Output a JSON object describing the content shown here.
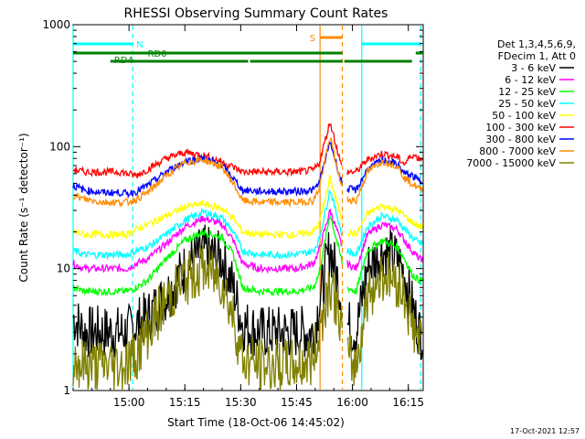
{
  "chart_data": {
    "type": "line",
    "title": "RHESSI Observing Summary Count Rates",
    "ylabel": "Count Rate (s⁻¹ detector⁻¹)",
    "xlabel": "Start Time (18-Oct-06 14:45:02)",
    "yscale": "log",
    "ylim": [
      1,
      1000
    ],
    "xlim_minutes": [
      0,
      94
    ],
    "x_ticks": [
      {
        "label": "15:00",
        "min": 15
      },
      {
        "label": "15:15",
        "min": 30
      },
      {
        "label": "15:30",
        "min": 45
      },
      {
        "label": "15:45",
        "min": 60
      },
      {
        "label": "16:00",
        "min": 75
      },
      {
        "label": "16:15",
        "min": 90
      }
    ],
    "y_ticks": [
      {
        "label": "1",
        "value": 1
      },
      {
        "label": "10",
        "value": 10
      },
      {
        "label": "100",
        "value": 100
      },
      {
        "label": "1000",
        "value": 1000
      }
    ],
    "legend_header": [
      "Det 1,3,4,5,6,9,",
      "FDecim 1, Att 0"
    ],
    "legend_placement": "right",
    "series": [
      {
        "name": "3 - 6 keV",
        "color": "#000000",
        "x": [
          0,
          3,
          8,
          13,
          14.5,
          17,
          20,
          25,
          30,
          35,
          40,
          43,
          45.5,
          50,
          56,
          60,
          64.5,
          66,
          69,
          72,
          73.5,
          76,
          79,
          83,
          87,
          89,
          91,
          93
        ],
        "y": [
          4,
          3,
          3,
          3,
          3,
          3.5,
          4,
          6,
          10,
          14,
          12,
          7,
          3.5,
          3,
          3,
          3,
          3,
          5,
          15,
          6,
          3.5,
          3,
          10,
          14,
          12,
          9,
          5,
          3
        ]
      },
      {
        "name": "6 - 12 keV",
        "color": "#ff00ff",
        "x": [
          0,
          3,
          8,
          13,
          14.5,
          17,
          20,
          25,
          30,
          35,
          40,
          43,
          45.5,
          50,
          56,
          60,
          64.5,
          66,
          69,
          72,
          73.5,
          76,
          79,
          83,
          87,
          89,
          91,
          93
        ],
        "y": [
          11,
          10,
          10,
          10,
          10,
          11,
          12,
          16,
          22,
          26,
          23,
          17,
          11,
          10,
          10,
          10,
          11,
          14,
          30,
          16,
          11,
          10,
          19,
          23,
          21,
          17,
          14,
          12
        ]
      },
      {
        "name": "12 - 25 keV",
        "color": "#00ff00",
        "x": [
          0,
          3,
          8,
          13,
          14.5,
          17,
          20,
          25,
          30,
          35,
          40,
          43,
          45.5,
          50,
          56,
          60,
          64.5,
          66,
          69,
          72,
          73.5,
          76,
          79,
          83,
          87,
          89,
          91,
          93
        ],
        "y": [
          7,
          6.5,
          6.5,
          6.5,
          6.5,
          7,
          8,
          12,
          17,
          20,
          18,
          13,
          7,
          6.5,
          6.5,
          6.5,
          7,
          9,
          28,
          12,
          7,
          6.5,
          14,
          17,
          15,
          12,
          9,
          8
        ]
      },
      {
        "name": "25 - 50 keV",
        "color": "#00ffff",
        "x": [
          0,
          3,
          8,
          13,
          14.5,
          17,
          20,
          25,
          30,
          35,
          40,
          43,
          45.5,
          50,
          56,
          60,
          64.5,
          66,
          69,
          72,
          73.5,
          76,
          79,
          83,
          87,
          89,
          91,
          93
        ],
        "y": [
          14,
          13,
          13,
          13,
          13,
          14,
          15,
          19,
          25,
          29,
          26,
          20,
          14,
          13,
          13,
          13,
          14,
          17,
          45,
          20,
          14,
          13,
          22,
          27,
          25,
          21,
          18,
          16
        ]
      },
      {
        "name": "50 - 100 keV",
        "color": "#ffff00",
        "x": [
          0,
          3,
          8,
          13,
          14.5,
          17,
          20,
          25,
          30,
          35,
          40,
          43,
          45.5,
          50,
          56,
          60,
          64.5,
          66,
          69,
          72,
          73.5,
          76,
          79,
          83,
          87,
          89,
          91,
          93
        ],
        "y": [
          20,
          19,
          19,
          19,
          19,
          21,
          23,
          27,
          32,
          34,
          31,
          26,
          20,
          19,
          19,
          19,
          20,
          23,
          55,
          26,
          20,
          19,
          28,
          33,
          30,
          27,
          24,
          22
        ]
      },
      {
        "name": "100 - 300 keV",
        "color": "#ff0000",
        "x": [
          0,
          3,
          8,
          13,
          14.5,
          17,
          20,
          25,
          30,
          35,
          40,
          43,
          45.5,
          50,
          56,
          60,
          64.5,
          66,
          69,
          72,
          73.5,
          76,
          79,
          83,
          87,
          89,
          91,
          93
        ],
        "y": [
          65,
          62,
          62,
          62,
          60,
          58,
          65,
          80,
          90,
          85,
          75,
          68,
          62,
          62,
          62,
          62,
          64,
          72,
          160,
          70,
          62,
          62,
          78,
          88,
          82,
          72,
          86,
          80
        ]
      },
      {
        "name": "300 - 800 keV",
        "color": "#0000ff",
        "x": [
          0,
          3,
          8,
          13,
          14.5,
          17,
          20,
          25,
          30,
          35,
          40,
          43,
          45.5,
          50,
          56,
          60,
          64.5,
          66,
          69,
          72,
          73.5,
          76,
          79,
          83,
          87,
          89,
          91,
          93
        ],
        "y": [
          48,
          44,
          42,
          42,
          41,
          43,
          48,
          62,
          76,
          80,
          70,
          55,
          44,
          43,
          43,
          43,
          44,
          50,
          110,
          52,
          45,
          44,
          65,
          78,
          72,
          60,
          58,
          52
        ]
      },
      {
        "name": "800 - 7000 keV",
        "color": "#ff8c00",
        "x": [
          0,
          3,
          8,
          13,
          14.5,
          17,
          20,
          25,
          30,
          35,
          40,
          43,
          45.5,
          50,
          56,
          60,
          64.5,
          66,
          69,
          72,
          73.5,
          76,
          79,
          83,
          87,
          89,
          91,
          93
        ],
        "y": [
          40,
          37,
          35,
          35,
          35,
          37,
          42,
          58,
          74,
          78,
          68,
          50,
          36,
          35,
          35,
          35,
          36,
          45,
          120,
          48,
          37,
          36,
          62,
          76,
          70,
          55,
          50,
          45
        ]
      },
      {
        "name": "7000 - 15000 keV",
        "color": "#808000",
        "x": [
          0,
          3,
          8,
          13,
          14.5,
          17,
          20,
          25,
          30,
          35,
          40,
          43,
          45.5,
          50,
          56,
          60,
          64.5,
          66,
          69,
          72,
          73.5,
          76,
          79,
          83,
          87,
          89,
          91,
          93
        ],
        "y": [
          1.8,
          1.6,
          1.6,
          1.6,
          1.7,
          2,
          3,
          5.5,
          8,
          10,
          8,
          4,
          1.8,
          1.6,
          1.6,
          1.6,
          1.8,
          3,
          8,
          3.5,
          1.8,
          1.6,
          6,
          9,
          8,
          6,
          3.5,
          2.5
        ]
      }
    ],
    "vertical_lines": [
      {
        "min": 0,
        "color": "#00ffff",
        "style": "solid"
      },
      {
        "min": 16,
        "color": "#00ffff",
        "style": "dashed"
      },
      {
        "min": 66.3,
        "color": "#ff8c00",
        "style": "solid"
      },
      {
        "min": 72.3,
        "color": "#ff8c00",
        "style": "dashed"
      },
      {
        "min": 77.5,
        "color": "#00ffff",
        "style": "solid"
      },
      {
        "min": 93.3,
        "color": "#00ffff",
        "style": "dashed"
      }
    ],
    "flag_bars": [
      {
        "label": "N",
        "color": "#00ffff",
        "level": 1,
        "segments": [
          [
            0,
            16
          ],
          [
            77.5,
            93.3
          ]
        ],
        "label_at": 17
      },
      {
        "label": "RD0",
        "color": "#008000",
        "level": 2,
        "segments": [
          [
            0,
            72.3
          ],
          [
            92,
            94
          ]
        ],
        "label_at": 20
      },
      {
        "label": "RD4",
        "color": "#008000",
        "level": 3,
        "segments": [
          [
            10,
            47
          ],
          [
            47.5,
            72.3
          ],
          [
            72.8,
            91
          ]
        ],
        "label_at": 11
      },
      {
        "label": "S",
        "color": "#ff8c00",
        "level": 0,
        "segments": [
          [
            66.3,
            72.3
          ]
        ],
        "label_at": 63.5
      }
    ]
  },
  "timestamp": "17-Oct-2021 12:57"
}
